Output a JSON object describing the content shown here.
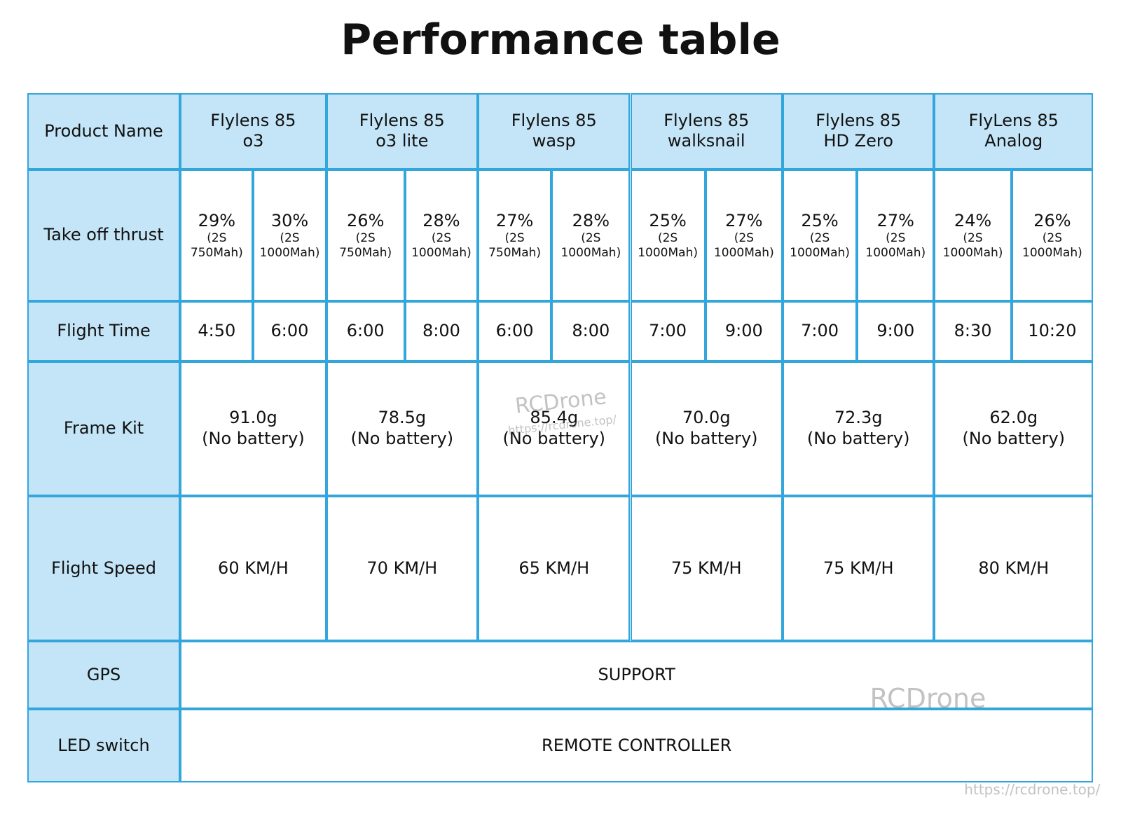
{
  "title": "Performance table",
  "table": {
    "row_labels": [
      "Product Name",
      "Take off thrust",
      "Flight Time",
      "Frame Kit",
      "Flight Speed",
      "GPS",
      "LED switch"
    ],
    "products": [
      {
        "name": [
          "Flylens 85",
          "o3"
        ],
        "thrust": [
          {
            "percent": "29%",
            "battery": [
              "(2S",
              "750Mah)"
            ]
          },
          {
            "percent": "30%",
            "battery": [
              "(2S",
              "1000Mah)"
            ]
          }
        ],
        "flight_time": [
          "4:50",
          "6:00"
        ],
        "frame_kit": [
          "91.0g",
          "(No battery)"
        ],
        "flight_speed": "60 KM/H"
      },
      {
        "name": [
          "Flylens 85",
          "o3 lite"
        ],
        "thrust": [
          {
            "percent": "26%",
            "battery": [
              "(2S",
              "750Mah)"
            ]
          },
          {
            "percent": "28%",
            "battery": [
              "(2S",
              "1000Mah)"
            ]
          }
        ],
        "flight_time": [
          "6:00",
          "8:00"
        ],
        "frame_kit": [
          "78.5g",
          "(No battery)"
        ],
        "flight_speed": "70 KM/H"
      },
      {
        "name": [
          "Flylens 85",
          "wasp"
        ],
        "thrust": [
          {
            "percent": "27%",
            "battery": [
              "(2S",
              "750Mah)"
            ]
          },
          {
            "percent": "28%",
            "battery": [
              "(2S",
              "1000Mah)"
            ]
          }
        ],
        "flight_time": [
          "6:00",
          "8:00"
        ],
        "frame_kit": [
          "85.4g",
          "(No battery)"
        ],
        "flight_speed": "65 KM/H"
      },
      {
        "name": [
          "Flylens 85",
          "walksnail"
        ],
        "thrust": [
          {
            "percent": "25%",
            "battery": [
              "(2S",
              "1000Mah)"
            ]
          },
          {
            "percent": "27%",
            "battery": [
              "(2S",
              "1000Mah)"
            ]
          }
        ],
        "flight_time": [
          "7:00",
          "9:00"
        ],
        "frame_kit": [
          "70.0g",
          "(No battery)"
        ],
        "flight_speed": "75 KM/H"
      },
      {
        "name": [
          "Flylens 85",
          "HD Zero"
        ],
        "thrust": [
          {
            "percent": "25%",
            "battery": [
              "(2S",
              "1000Mah)"
            ]
          },
          {
            "percent": "27%",
            "battery": [
              "(2S",
              "1000Mah)"
            ]
          }
        ],
        "flight_time": [
          "7:00",
          "9:00"
        ],
        "frame_kit": [
          "72.3g",
          "(No battery)"
        ],
        "flight_speed": "75 KM/H"
      },
      {
        "name": [
          "FlyLens 85",
          "Analog"
        ],
        "thrust": [
          {
            "percent": "24%",
            "battery": [
              "(2S",
              "1000Mah)"
            ]
          },
          {
            "percent": "26%",
            "battery": [
              "(2S",
              "1000Mah)"
            ]
          }
        ],
        "flight_time": [
          "8:30",
          "10:20"
        ],
        "frame_kit": [
          "62.0g",
          "(No battery)"
        ],
        "flight_speed": "80 KM/H"
      }
    ],
    "gps": "SUPPORT",
    "led_switch": "REMOTE CONTROLLER"
  },
  "watermarks": [
    "RCDrone",
    "https://rcdrone.top/",
    "RCDrone",
    "https://rcdrone.top/"
  ]
}
